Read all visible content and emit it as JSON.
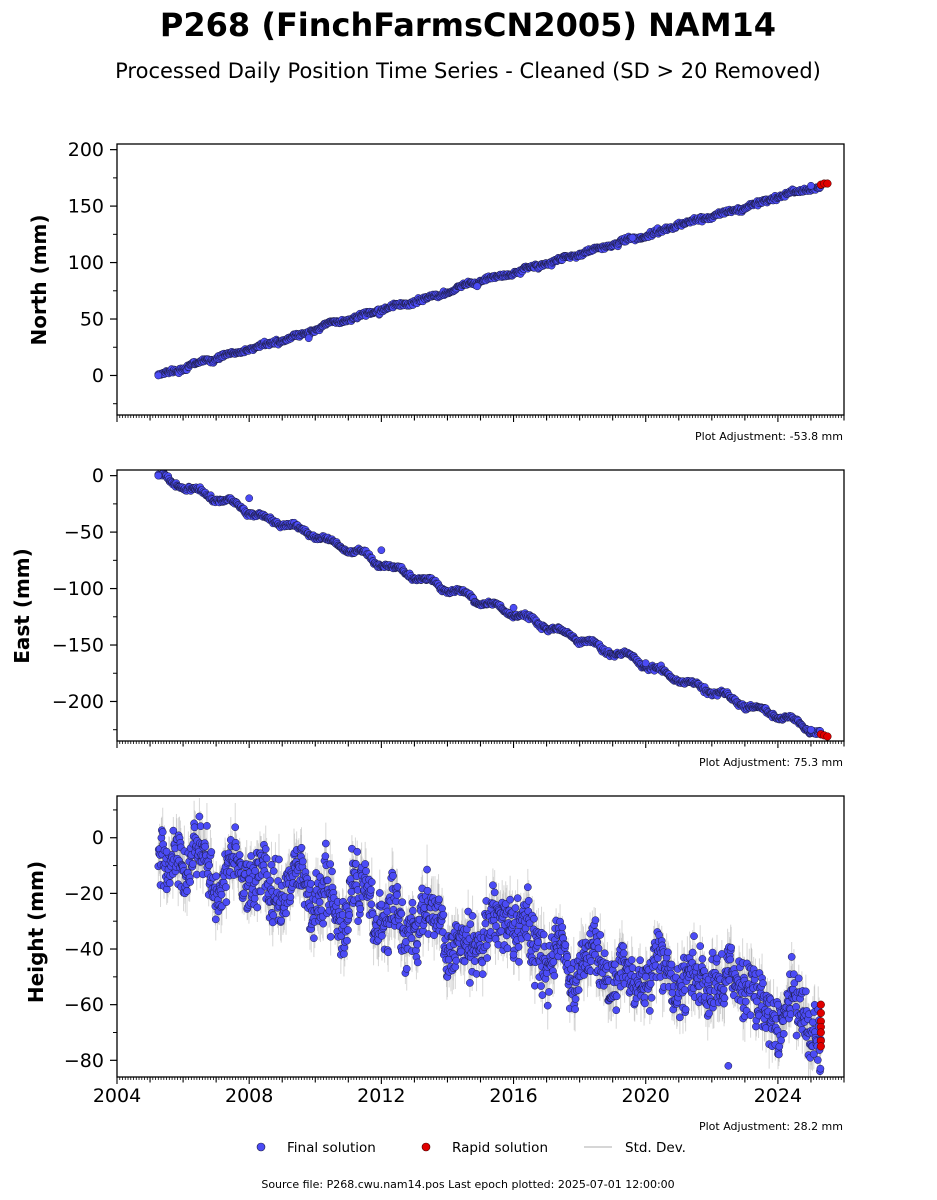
{
  "title": "P268 (FinchFarmsCN2005) NAM14",
  "subtitle": "Processed Daily Position Time Series - Cleaned (SD > 20 Removed)",
  "source_note": "Source file: P268.cwu.nam14.pos  Last epoch plotted: 2025-07-01 12:00:00",
  "legend": [
    {
      "label": "Final solution",
      "color": "#4b4bf5",
      "kind": "marker"
    },
    {
      "label": "Rapid solution",
      "color": "#e00000",
      "kind": "marker"
    },
    {
      "label": "Std. Dev.",
      "color": "#c8c8c8",
      "kind": "line"
    }
  ],
  "colors": {
    "final": "#4b4bf5",
    "rapid": "#e00000",
    "stddev": "#b0b0b0",
    "edge": "#1a1a3a"
  },
  "chart_data": [
    {
      "type": "scatter",
      "panel": "north",
      "ylabel": "North (mm)",
      "adjustment": "Plot Adjustment: -53.8 mm",
      "xlim": [
        2004,
        2026
      ],
      "ylim": [
        -35,
        205
      ],
      "yticks": [
        0,
        50,
        100,
        150,
        200
      ],
      "ytick_labels": [
        "0",
        "50",
        "100",
        "150",
        "200"
      ],
      "trend": {
        "x": [
          2005.25,
          2025.3
        ],
        "y": [
          0,
          169
        ]
      },
      "rapid": {
        "x": [
          2025.3,
          2025.4,
          2025.5
        ],
        "y": [
          169,
          170,
          170
        ]
      },
      "final_samples": {
        "x": [
          2005.25,
          2009.8,
          2014.9,
          2019.6,
          2025.0
        ],
        "y": [
          0,
          33,
          79,
          122,
          168
        ]
      }
    },
    {
      "type": "scatter",
      "panel": "east",
      "ylabel": "East (mm)",
      "adjustment": "Plot Adjustment: 75.3 mm",
      "xlim": [
        2004,
        2026
      ],
      "ylim": [
        -235,
        5
      ],
      "yticks": [
        0,
        -50,
        -100,
        -150,
        -200
      ],
      "ytick_labels": [
        "0",
        "−50",
        "−100",
        "−150",
        "−200"
      ],
      "trend": {
        "x": [
          2005.25,
          2025.3
        ],
        "y": [
          0,
          -228
        ]
      },
      "rapid": {
        "x": [
          2025.3,
          2025.4,
          2025.5
        ],
        "y": [
          -229,
          -230,
          -231
        ]
      },
      "final_samples": {
        "x": [
          2005.25,
          2008.0,
          2012.0,
          2016.0,
          2020.0,
          2025.0
        ],
        "y": [
          0,
          -20,
          -66,
          -117,
          -166,
          -225
        ]
      }
    },
    {
      "type": "scatter",
      "panel": "height",
      "ylabel": "Height (mm)",
      "adjustment": "Plot Adjustment: 28.2 mm",
      "xlim": [
        2004,
        2026
      ],
      "ylim": [
        -86,
        15
      ],
      "yticks": [
        0,
        -20,
        -40,
        -60,
        -80
      ],
      "ytick_labels": [
        "0",
        "−20",
        "−40",
        "−60",
        "−80"
      ],
      "xticks": [
        2004,
        2008,
        2012,
        2016,
        2020,
        2024
      ],
      "xtick_labels": [
        "2004",
        "2008",
        "2012",
        "2016",
        "2020",
        "2024"
      ],
      "trend": {
        "x": [
          2005.25,
          2025.3
        ],
        "y": [
          -6,
          -66
        ]
      },
      "rapid": {
        "x": [
          2025.3,
          2025.3,
          2025.3,
          2025.3,
          2025.3,
          2025.3,
          2025.3
        ],
        "y": [
          -60,
          -63,
          -66,
          -68,
          -70,
          -73,
          -75
        ]
      },
      "final_samples": {
        "x": [
          2005.5,
          2008.0,
          2012.0,
          2016.0,
          2020.0,
          2022.5,
          2024.0
        ],
        "y": [
          -5,
          -15,
          -24,
          -42,
          -50,
          -82,
          -60
        ]
      }
    }
  ]
}
